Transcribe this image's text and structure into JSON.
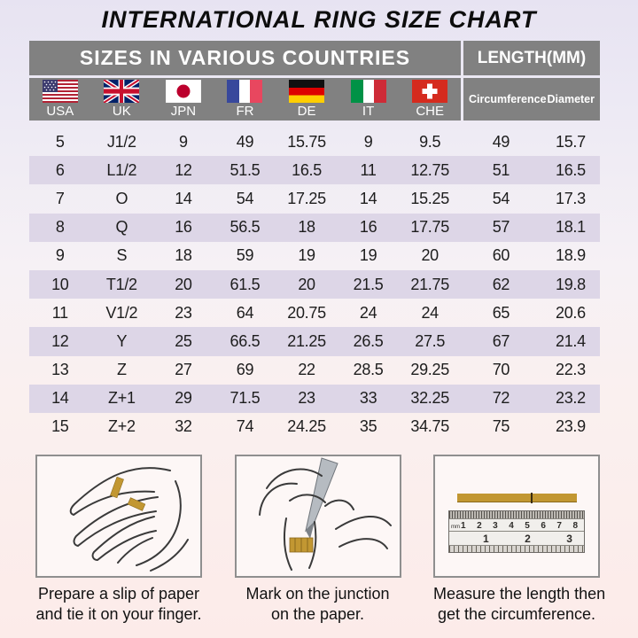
{
  "title": "INTERNATIONAL RING SIZE CHART",
  "chart_data": {
    "type": "table",
    "title": "INTERNATIONAL RING SIZE CHART",
    "column_groups": [
      "SIZES IN VARIOUS COUNTRIES",
      "LENGTH(MM)"
    ],
    "columns": [
      "USA",
      "UK",
      "JPN",
      "FR",
      "DE",
      "IT",
      "CHE",
      "Circumference",
      "Diameter"
    ],
    "rows": [
      [
        "5",
        "J1/2",
        "9",
        "49",
        "15.75",
        "9",
        "9.5",
        "49",
        "15.7"
      ],
      [
        "6",
        "L1/2",
        "12",
        "51.5",
        "16.5",
        "11",
        "12.75",
        "51",
        "16.5"
      ],
      [
        "7",
        "O",
        "14",
        "54",
        "17.25",
        "14",
        "15.25",
        "54",
        "17.3"
      ],
      [
        "8",
        "Q",
        "16",
        "56.5",
        "18",
        "16",
        "17.75",
        "57",
        "18.1"
      ],
      [
        "9",
        "S",
        "18",
        "59",
        "19",
        "19",
        "20",
        "60",
        "18.9"
      ],
      [
        "10",
        "T1/2",
        "20",
        "61.5",
        "20",
        "21.5",
        "21.75",
        "62",
        "19.8"
      ],
      [
        "11",
        "V1/2",
        "23",
        "64",
        "20.75",
        "24",
        "24",
        "65",
        "20.6"
      ],
      [
        "12",
        "Y",
        "25",
        "66.5",
        "21.25",
        "26.5",
        "27.5",
        "67",
        "21.4"
      ],
      [
        "13",
        "Z",
        "27",
        "69",
        "22",
        "28.5",
        "29.25",
        "70",
        "22.3"
      ],
      [
        "14",
        "Z+1",
        "29",
        "71.5",
        "23",
        "33",
        "32.25",
        "72",
        "23.2"
      ],
      [
        "15",
        "Z+2",
        "32",
        "74",
        "24.25",
        "35",
        "34.75",
        "75",
        "23.9"
      ]
    ]
  },
  "steps": [
    {
      "caption_line1": "Prepare a slip of paper",
      "caption_line2": "and tie it on your finger."
    },
    {
      "caption_line1": "Mark on the junction",
      "caption_line2": "on the paper."
    },
    {
      "caption_line1": "Measure the length then",
      "caption_line2": "get the circumference.",
      "ruler": {
        "unit_label": "mm",
        "cm_numbers": [
          "1",
          "2",
          "3",
          "4",
          "5",
          "6",
          "7",
          "8"
        ],
        "inch_numbers": [
          "1",
          "2",
          "3"
        ]
      }
    }
  ],
  "colors": {
    "header_bg": "#818181",
    "header_text": "#ffffff",
    "row_shade": "#ddd6e7",
    "paper_strip": "#c29732",
    "table_text": "#1d1d1d"
  }
}
